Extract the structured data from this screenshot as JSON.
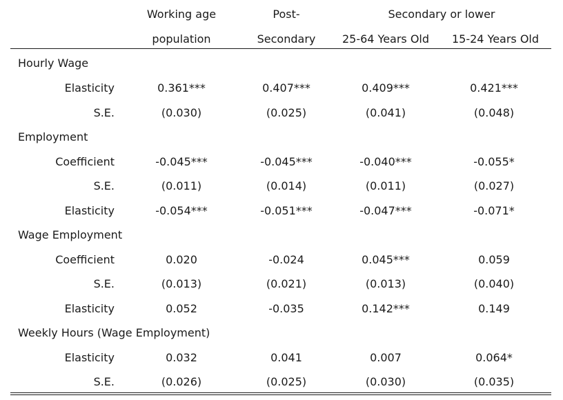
{
  "header": {
    "col1_line1": "Working age",
    "col1_line2": "population",
    "col2_line1": "Post-",
    "col2_line2": "Secondary",
    "group_label": "Secondary or lower",
    "col3": "25-64 Years Old",
    "col4": "15-24 Years Old"
  },
  "sections": [
    {
      "title": "Hourly Wage",
      "rows": [
        {
          "label": "Elasticity",
          "values": [
            "0.361***",
            "0.407***",
            "0.409***",
            "0.421***"
          ]
        },
        {
          "label": "S.E.",
          "values": [
            "(0.030)",
            "(0.025)",
            "(0.041)",
            "(0.048)"
          ]
        }
      ]
    },
    {
      "title": "Employment",
      "rows": [
        {
          "label": "Coefficient",
          "values": [
            "-0.045***",
            "-0.045***",
            "-0.040***",
            "-0.055*"
          ]
        },
        {
          "label": "S.E.",
          "values": [
            "(0.011)",
            "(0.014)",
            "(0.011)",
            "(0.027)"
          ]
        },
        {
          "label": "Elasticity",
          "values": [
            "-0.054***",
            "-0.051***",
            "-0.047***",
            "-0.071*"
          ]
        }
      ]
    },
    {
      "title": "Wage Employment",
      "rows": [
        {
          "label": "Coefficient",
          "values": [
            "0.020",
            "-0.024",
            "0.045***",
            "0.059"
          ]
        },
        {
          "label": "S.E.",
          "values": [
            "(0.013)",
            "(0.021)",
            "(0.013)",
            "(0.040)"
          ]
        },
        {
          "label": "Elasticity",
          "values": [
            "0.052",
            "-0.035",
            "0.142***",
            "0.149"
          ]
        }
      ]
    },
    {
      "title": "Weekly Hours (Wage Employment)",
      "rows": [
        {
          "label": "Elasticity",
          "values": [
            "0.032",
            "0.041",
            "0.007",
            "0.064*"
          ]
        },
        {
          "label": "S.E.",
          "values": [
            "(0.026)",
            "(0.025)",
            "(0.030)",
            "(0.035)"
          ]
        }
      ]
    }
  ]
}
